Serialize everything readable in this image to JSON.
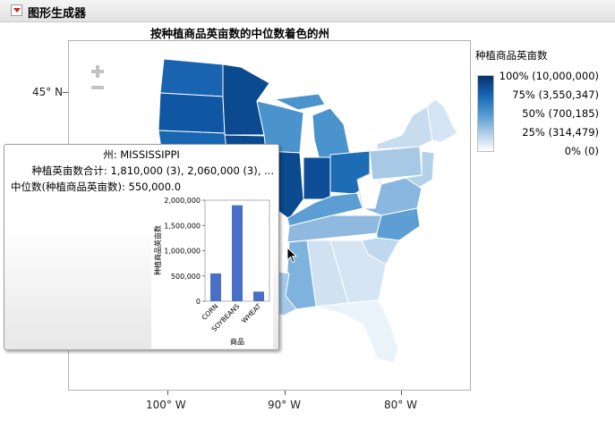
{
  "header": {
    "title": "图形生成器"
  },
  "map": {
    "title": "按种植商品英亩数的中位数着色的州",
    "y_ticks": [
      "45° N"
    ],
    "x_ticks": [
      "100° W",
      "90° W",
      "80° W"
    ]
  },
  "legend": {
    "title": "种植商品英亩数",
    "entries": [
      "100% (10,000,000)",
      "75% (3,550,347)",
      "50% (700,185)",
      "25% (314,479)",
      "0% (0)"
    ],
    "colors": [
      "#08306b",
      "#1665b3",
      "#4f97cf",
      "#aacbe6",
      "#ffffff"
    ]
  },
  "tooltip": {
    "state_line": "州: MISSISSIPPI",
    "sum_line": "种植英亩数合计: 1,810,000 (3), 2,060,000 (3), ...",
    "median_line": "中位数(种植商品英亩数): 550,000.0"
  },
  "chart_data": {
    "type": "bar",
    "categories": [
      "CORN",
      "SOYBEANS",
      "WHEAT"
    ],
    "values": [
      550000,
      1900000,
      190000
    ],
    "xlabel": "商品",
    "ylabel": "种植商品英亩数",
    "ylim": [
      0,
      2000000
    ],
    "yticks": [
      "0",
      "500,000",
      "1,000,000",
      "1,500,000",
      "2,000,000"
    ],
    "bar_color": "#4a6fc6"
  }
}
